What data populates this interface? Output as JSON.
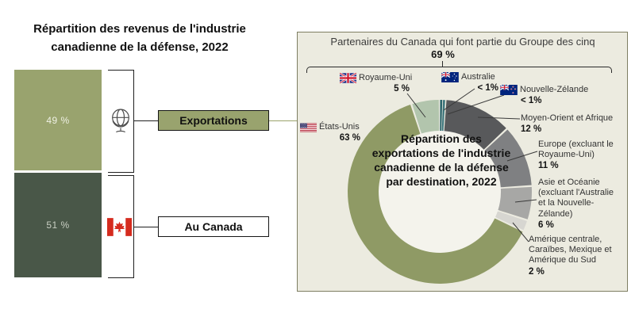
{
  "left_chart": {
    "title": "Répartition des revenus de l'industrie canadienne de la défense, 2022",
    "bar": {
      "segments": [
        {
          "id": "exportations",
          "label": "Exportations",
          "value": 49,
          "value_label": "49 %",
          "color": "#99a36e",
          "icon": "globe-icon"
        },
        {
          "id": "au_canada",
          "label": "Au Canada",
          "value": 51,
          "value_label": "51 %",
          "color": "#495748",
          "icon": "canada-flag-icon"
        }
      ]
    }
  },
  "panel": {
    "header": "Partenaires du Canada qui font partie du Groupe des cinq",
    "group_share": "69 %",
    "background": "#ecebe0",
    "border_color": "#7e7e62"
  },
  "chart_data": {
    "type": "donut",
    "title": "Répartition des exportations de l'industrie canadienne de la défense par destination, 2022",
    "units": "percent",
    "direction": "clockwise",
    "start_angle_deg": 0,
    "segments": [
      {
        "id": "australie",
        "name": "Australie",
        "value": 0.5,
        "value_label": "< 1%",
        "color": "#2b646b",
        "flag": "australia-flag-icon"
      },
      {
        "id": "nouvelle_zelande",
        "name": "Nouvelle-Zélande",
        "value": 0.5,
        "value_label": "< 1%",
        "color": "#3d767d",
        "flag": "new-zealand-flag-icon"
      },
      {
        "id": "moyen_orient_afrique",
        "name": "Moyen-Orient et Afrique",
        "value": 12,
        "value_label": "12 %",
        "color": "#58595b"
      },
      {
        "id": "europe",
        "name": "Europe (excluant le Royaume-Uni)",
        "value": 11,
        "value_label": "11 %",
        "color": "#7f8082"
      },
      {
        "id": "asie_oceanie",
        "name": "Asie et Océanie (excluant l'Australie et la Nouvelle-Zélande)",
        "value": 6,
        "value_label": "6 %",
        "color": "#a7a7a5"
      },
      {
        "id": "amerique",
        "name": "Amérique centrale, Caraïbes, Mexique et Amérique du Sud",
        "value": 2,
        "value_label": "2 %",
        "color": "#d7d6d1"
      },
      {
        "id": "etats_unis",
        "name": "États-Unis",
        "value": 63,
        "value_label": "63 %",
        "color": "#8f9a65",
        "flag": "us-flag-icon"
      },
      {
        "id": "royaume_uni",
        "name": "Royaume-Uni",
        "value": 5,
        "value_label": "5 %",
        "color": "#b2c5ad",
        "flag": "uk-flag-icon"
      }
    ]
  }
}
